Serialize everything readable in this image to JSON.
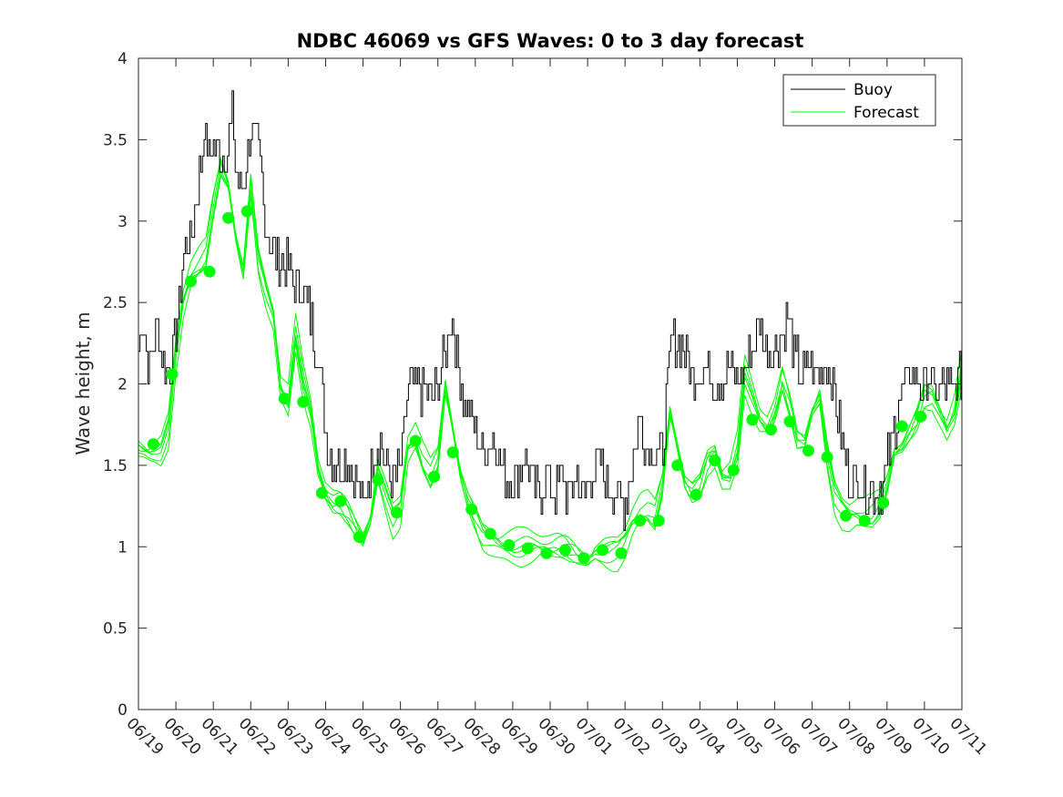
{
  "chart_data": {
    "type": "line",
    "title": "NDBC 46069 vs GFS Waves: 0 to 3 day forecast",
    "xlabel": "",
    "ylabel": "Wave height, m",
    "x_tick_labels": [
      "06/19",
      "06/20",
      "06/21",
      "06/22",
      "06/23",
      "06/24",
      "06/25",
      "06/26",
      "06/27",
      "06/28",
      "06/29",
      "06/30",
      "07/01",
      "07/02",
      "07/03",
      "07/04",
      "07/05",
      "07/06",
      "07/07",
      "07/08",
      "07/09",
      "07/10",
      "07/11"
    ],
    "xlim": [
      0,
      22
    ],
    "ylim": [
      0,
      4
    ],
    "y_ticks": [
      0,
      0.5,
      1,
      1.5,
      2,
      2.5,
      3,
      3.5,
      4
    ],
    "grid": false,
    "legend": {
      "position": "top-right",
      "entries": [
        "Buoy",
        "Forecast"
      ]
    },
    "colors": {
      "buoy": "#000000",
      "forecast": "#00ff00",
      "axes": "#262626"
    },
    "buoy_anchors": [
      [
        0.0,
        2.25
      ],
      [
        0.1,
        2.4
      ],
      [
        0.3,
        2.1
      ],
      [
        0.5,
        2.35
      ],
      [
        0.7,
        2.1
      ],
      [
        0.9,
        2.15
      ],
      [
        1.0,
        2.3
      ],
      [
        1.2,
        2.8
      ],
      [
        1.4,
        2.9
      ],
      [
        1.6,
        3.2
      ],
      [
        1.75,
        3.6
      ],
      [
        1.85,
        3.4
      ],
      [
        2.0,
        3.5
      ],
      [
        2.2,
        3.4
      ],
      [
        2.4,
        3.45
      ],
      [
        2.5,
        3.7
      ],
      [
        2.6,
        3.3
      ],
      [
        2.8,
        3.2
      ],
      [
        3.0,
        3.55
      ],
      [
        3.2,
        3.4
      ],
      [
        3.4,
        3.0
      ],
      [
        3.6,
        2.8
      ],
      [
        3.8,
        2.75
      ],
      [
        4.0,
        2.7
      ],
      [
        4.2,
        2.6
      ],
      [
        4.4,
        2.6
      ],
      [
        4.6,
        2.4
      ],
      [
        4.8,
        2.2
      ],
      [
        4.9,
        1.9
      ],
      [
        5.0,
        1.7
      ],
      [
        5.2,
        1.5
      ],
      [
        5.4,
        1.55
      ],
      [
        5.6,
        1.5
      ],
      [
        5.8,
        1.4
      ],
      [
        6.0,
        1.25
      ],
      [
        6.2,
        1.5
      ],
      [
        6.4,
        1.7
      ],
      [
        6.6,
        1.5
      ],
      [
        6.8,
        1.4
      ],
      [
        7.0,
        1.45
      ],
      [
        7.2,
        1.95
      ],
      [
        7.4,
        2.0
      ],
      [
        7.6,
        1.95
      ],
      [
        7.8,
        1.9
      ],
      [
        8.0,
        2.0
      ],
      [
        8.2,
        2.2
      ],
      [
        8.35,
        2.45
      ],
      [
        8.5,
        2.2
      ],
      [
        8.7,
        1.9
      ],
      [
        8.9,
        1.8
      ],
      [
        9.1,
        1.6
      ],
      [
        9.3,
        1.6
      ],
      [
        9.5,
        1.7
      ],
      [
        9.7,
        1.5
      ],
      [
        9.9,
        1.4
      ],
      [
        10.1,
        1.4
      ],
      [
        10.3,
        1.55
      ],
      [
        10.5,
        1.4
      ],
      [
        10.7,
        1.3
      ],
      [
        10.9,
        1.45
      ],
      [
        11.1,
        1.3
      ],
      [
        11.3,
        1.45
      ],
      [
        11.5,
        1.3
      ],
      [
        11.7,
        1.45
      ],
      [
        11.9,
        1.3
      ],
      [
        12.1,
        1.45
      ],
      [
        12.3,
        1.5
      ],
      [
        12.5,
        1.4
      ],
      [
        12.7,
        1.3
      ],
      [
        12.9,
        1.3
      ],
      [
        13.0,
        1.25
      ],
      [
        13.2,
        1.55
      ],
      [
        13.4,
        1.8
      ],
      [
        13.6,
        1.6
      ],
      [
        13.8,
        1.6
      ],
      [
        14.0,
        1.55
      ],
      [
        14.2,
        2.2
      ],
      [
        14.4,
        2.3
      ],
      [
        14.6,
        2.2
      ],
      [
        14.8,
        2.0
      ],
      [
        15.0,
        2.1
      ],
      [
        15.2,
        2.1
      ],
      [
        15.4,
        2.05
      ],
      [
        15.6,
        2.0
      ],
      [
        15.8,
        2.1
      ],
      [
        16.0,
        2.0
      ],
      [
        16.2,
        2.1
      ],
      [
        16.4,
        2.2
      ],
      [
        16.6,
        2.35
      ],
      [
        16.8,
        2.2
      ],
      [
        17.0,
        2.2
      ],
      [
        17.2,
        2.3
      ],
      [
        17.35,
        2.45
      ],
      [
        17.5,
        2.2
      ],
      [
        17.7,
        2.05
      ],
      [
        17.9,
        2.1
      ],
      [
        18.1,
        2.05
      ],
      [
        18.3,
        2.1
      ],
      [
        18.5,
        2.05
      ],
      [
        18.7,
        1.8
      ],
      [
        18.9,
        1.5
      ],
      [
        19.1,
        1.4
      ],
      [
        19.3,
        1.4
      ],
      [
        19.5,
        1.35
      ],
      [
        19.7,
        1.35
      ],
      [
        19.9,
        1.4
      ],
      [
        20.1,
        1.6
      ],
      [
        20.3,
        1.9
      ],
      [
        20.5,
        2.0
      ],
      [
        20.7,
        2.1
      ],
      [
        20.9,
        1.95
      ],
      [
        21.1,
        2.05
      ],
      [
        21.3,
        1.95
      ],
      [
        21.5,
        2.0
      ],
      [
        21.7,
        1.95
      ],
      [
        21.9,
        2.05
      ]
    ],
    "forecast_means": [
      [
        0.4,
        1.63
      ],
      [
        0.9,
        2.06
      ],
      [
        1.4,
        2.63
      ],
      [
        1.9,
        2.69
      ],
      [
        2.4,
        3.02
      ],
      [
        2.9,
        3.06
      ],
      [
        3.9,
        1.91
      ],
      [
        4.4,
        1.89
      ],
      [
        4.9,
        1.33
      ],
      [
        5.4,
        1.28
      ],
      [
        5.9,
        1.06
      ],
      [
        6.4,
        1.41
      ],
      [
        6.9,
        1.21
      ],
      [
        7.4,
        1.65
      ],
      [
        7.9,
        1.43
      ],
      [
        8.4,
        1.58
      ],
      [
        8.9,
        1.23
      ],
      [
        9.4,
        1.08
      ],
      [
        9.9,
        1.01
      ],
      [
        10.4,
        0.99
      ],
      [
        10.9,
        0.96
      ],
      [
        11.4,
        0.98
      ],
      [
        11.9,
        0.93
      ],
      [
        12.4,
        0.98
      ],
      [
        12.9,
        0.96
      ],
      [
        13.4,
        1.16
      ],
      [
        13.9,
        1.16
      ],
      [
        14.4,
        1.5
      ],
      [
        14.9,
        1.32
      ],
      [
        15.4,
        1.53
      ],
      [
        15.9,
        1.47
      ],
      [
        16.4,
        1.78
      ],
      [
        16.9,
        1.72
      ],
      [
        17.4,
        1.77
      ],
      [
        17.9,
        1.59
      ],
      [
        18.4,
        1.55
      ],
      [
        18.9,
        1.19
      ],
      [
        19.4,
        1.16
      ],
      [
        19.9,
        1.27
      ],
      [
        20.4,
        1.74
      ],
      [
        20.9,
        1.8
      ]
    ],
    "forecast_curve": [
      [
        0.0,
        1.62
      ],
      [
        0.3,
        1.6
      ],
      [
        0.6,
        1.62
      ],
      [
        0.8,
        1.75
      ],
      [
        1.0,
        2.2
      ],
      [
        1.2,
        2.5
      ],
      [
        1.4,
        2.65
      ],
      [
        1.6,
        2.7
      ],
      [
        1.8,
        2.75
      ],
      [
        2.0,
        3.05
      ],
      [
        2.2,
        3.3
      ],
      [
        2.4,
        3.2
      ],
      [
        2.6,
        2.9
      ],
      [
        2.8,
        2.7
      ],
      [
        3.0,
        3.25
      ],
      [
        3.2,
        2.8
      ],
      [
        3.4,
        2.6
      ],
      [
        3.6,
        2.45
      ],
      [
        3.8,
        2.0
      ],
      [
        4.0,
        1.9
      ],
      [
        4.2,
        2.3
      ],
      [
        4.4,
        2.0
      ],
      [
        4.6,
        1.8
      ],
      [
        4.8,
        1.45
      ],
      [
        5.0,
        1.3
      ],
      [
        5.2,
        1.25
      ],
      [
        5.4,
        1.25
      ],
      [
        5.6,
        1.2
      ],
      [
        5.8,
        1.12
      ],
      [
        6.0,
        1.06
      ],
      [
        6.2,
        1.2
      ],
      [
        6.4,
        1.5
      ],
      [
        6.6,
        1.35
      ],
      [
        6.8,
        1.2
      ],
      [
        7.0,
        1.25
      ],
      [
        7.2,
        1.6
      ],
      [
        7.4,
        1.65
      ],
      [
        7.6,
        1.5
      ],
      [
        7.8,
        1.4
      ],
      [
        8.0,
        1.5
      ],
      [
        8.2,
        1.95
      ],
      [
        8.4,
        1.7
      ],
      [
        8.6,
        1.45
      ],
      [
        8.8,
        1.3
      ],
      [
        9.0,
        1.2
      ],
      [
        9.2,
        1.1
      ],
      [
        9.4,
        1.07
      ],
      [
        9.6,
        1.04
      ],
      [
        9.8,
        1.02
      ],
      [
        10.0,
        1.0
      ],
      [
        10.2,
        0.99
      ],
      [
        10.4,
        0.99
      ],
      [
        10.6,
        0.98
      ],
      [
        10.8,
        0.97
      ],
      [
        11.0,
        0.97
      ],
      [
        11.2,
        0.98
      ],
      [
        11.4,
        0.98
      ],
      [
        11.6,
        0.96
      ],
      [
        11.8,
        0.94
      ],
      [
        12.0,
        0.93
      ],
      [
        12.2,
        0.99
      ],
      [
        12.4,
        1.0
      ],
      [
        12.6,
        1.0
      ],
      [
        12.8,
        1.0
      ],
      [
        13.0,
        1.05
      ],
      [
        13.2,
        1.15
      ],
      [
        13.4,
        1.2
      ],
      [
        13.6,
        1.2
      ],
      [
        13.8,
        1.15
      ],
      [
        14.0,
        1.35
      ],
      [
        14.2,
        1.8
      ],
      [
        14.4,
        1.6
      ],
      [
        14.6,
        1.4
      ],
      [
        14.8,
        1.35
      ],
      [
        15.0,
        1.4
      ],
      [
        15.2,
        1.55
      ],
      [
        15.4,
        1.6
      ],
      [
        15.6,
        1.45
      ],
      [
        15.8,
        1.45
      ],
      [
        16.0,
        1.6
      ],
      [
        16.2,
        2.05
      ],
      [
        16.4,
        1.9
      ],
      [
        16.6,
        1.75
      ],
      [
        16.8,
        1.7
      ],
      [
        17.0,
        1.8
      ],
      [
        17.2,
        2.0
      ],
      [
        17.4,
        1.85
      ],
      [
        17.6,
        1.65
      ],
      [
        17.8,
        1.65
      ],
      [
        18.0,
        1.85
      ],
      [
        18.2,
        1.95
      ],
      [
        18.4,
        1.6
      ],
      [
        18.6,
        1.35
      ],
      [
        18.8,
        1.25
      ],
      [
        19.0,
        1.2
      ],
      [
        19.2,
        1.2
      ],
      [
        19.4,
        1.17
      ],
      [
        19.6,
        1.17
      ],
      [
        19.8,
        1.22
      ],
      [
        20.0,
        1.35
      ],
      [
        20.2,
        1.55
      ],
      [
        20.4,
        1.6
      ],
      [
        20.6,
        1.7
      ],
      [
        20.8,
        1.8
      ],
      [
        21.0,
        1.95
      ],
      [
        21.2,
        1.95
      ],
      [
        21.4,
        1.85
      ],
      [
        21.6,
        1.75
      ],
      [
        21.8,
        1.85
      ],
      [
        22.0,
        2.1
      ]
    ]
  }
}
